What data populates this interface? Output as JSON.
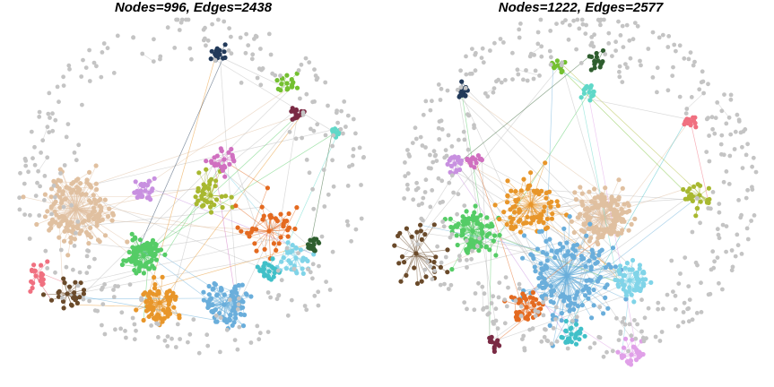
{
  "panels": [
    {
      "title": "Nodes=996, Edges=2438",
      "seed": 11,
      "communities": [
        {
          "color": "#e0c0a0",
          "nodes": 150
        },
        {
          "color": "#55cc66",
          "nodes": 100
        },
        {
          "color": "#e8962a",
          "nodes": 70
        },
        {
          "color": "#6aaedb",
          "nodes": 80
        },
        {
          "color": "#a8b830",
          "nodes": 40
        },
        {
          "color": "#c890e0",
          "nodes": 30
        },
        {
          "color": "#d070c0",
          "nodes": 25
        },
        {
          "color": "#e46a20",
          "nodes": 40
        },
        {
          "color": "#80d4e8",
          "nodes": 30
        },
        {
          "color": "#2f5e2f",
          "nodes": 18
        },
        {
          "color": "#6a4a2a",
          "nodes": 25
        },
        {
          "color": "#f07080",
          "nodes": 20
        },
        {
          "color": "#40c0c8",
          "nodes": 25
        },
        {
          "color": "#223a5a",
          "nodes": 15
        },
        {
          "color": "#74c030",
          "nodes": 18
        },
        {
          "color": "#7a2a44",
          "nodes": 15
        },
        {
          "color": "#60d8c8",
          "nodes": 12
        },
        {
          "color": "#c4c4c4",
          "nodes": 283
        }
      ]
    },
    {
      "title": "Nodes=1222, Edges=2577",
      "seed": 29,
      "communities": [
        {
          "color": "#e0c0a0",
          "nodes": 140
        },
        {
          "color": "#55cc66",
          "nodes": 90
        },
        {
          "color": "#e8962a",
          "nodes": 80
        },
        {
          "color": "#6aaedb",
          "nodes": 150
        },
        {
          "color": "#80d4e8",
          "nodes": 60
        },
        {
          "color": "#a8b830",
          "nodes": 25
        },
        {
          "color": "#c890e0",
          "nodes": 20
        },
        {
          "color": "#d070c0",
          "nodes": 15
        },
        {
          "color": "#e46a20",
          "nodes": 45
        },
        {
          "color": "#6a4a2a",
          "nodes": 30
        },
        {
          "color": "#223a5a",
          "nodes": 15
        },
        {
          "color": "#74c030",
          "nodes": 15
        },
        {
          "color": "#2f5e2f",
          "nodes": 15
        },
        {
          "color": "#60d8c8",
          "nodes": 15
        },
        {
          "color": "#f07080",
          "nodes": 15
        },
        {
          "color": "#7a2a44",
          "nodes": 12
        },
        {
          "color": "#40c0c8",
          "nodes": 30
        },
        {
          "color": "#e0a0e8",
          "nodes": 25
        },
        {
          "color": "#c4c4c4",
          "nodes": 425
        }
      ]
    }
  ]
}
